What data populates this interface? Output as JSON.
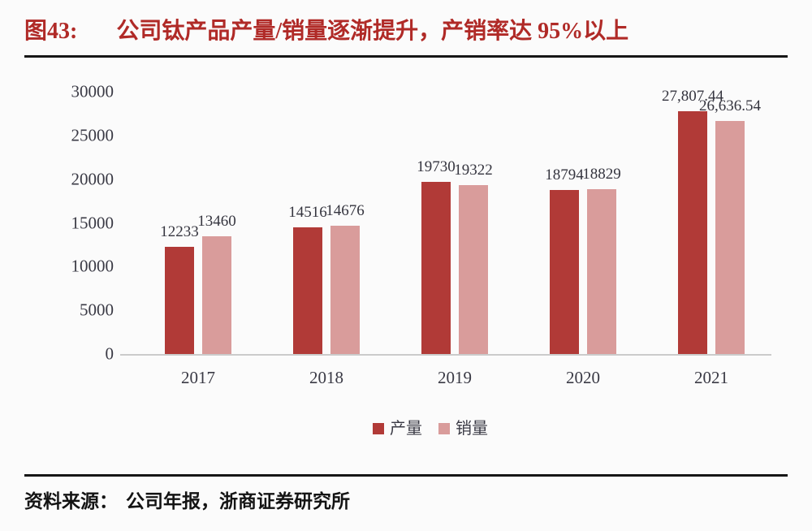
{
  "figure": {
    "title_label": "图43:",
    "title_text": "公司钛产品产量/销量逐渐提升，产销率达 95%以上",
    "title_color": "#b02a27",
    "source_label": "资料来源：",
    "source_text": "公司年报，浙商证券研究所"
  },
  "chart_data": {
    "type": "bar",
    "categories": [
      "2017",
      "2018",
      "2019",
      "2020",
      "2021"
    ],
    "series": [
      {
        "name": "产量",
        "color": "#b13a37",
        "values": [
          12233,
          14516,
          19730,
          18794,
          27807.44
        ],
        "labels": [
          "12233",
          "14516",
          "19730",
          "18794",
          "27,807.44"
        ]
      },
      {
        "name": "销量",
        "color": "#d99c9b",
        "values": [
          13460,
          14676,
          19322,
          18829,
          26636.54
        ],
        "labels": [
          "13460",
          "14676",
          "19322",
          "18829",
          "26,636.54"
        ]
      }
    ],
    "ylim": [
      0,
      30000
    ],
    "yticks": [
      0,
      5000,
      10000,
      15000,
      20000,
      25000,
      30000
    ],
    "xlabel": "",
    "ylabel": "",
    "grid": false,
    "legend_position": "bottom",
    "value_labels": true
  }
}
